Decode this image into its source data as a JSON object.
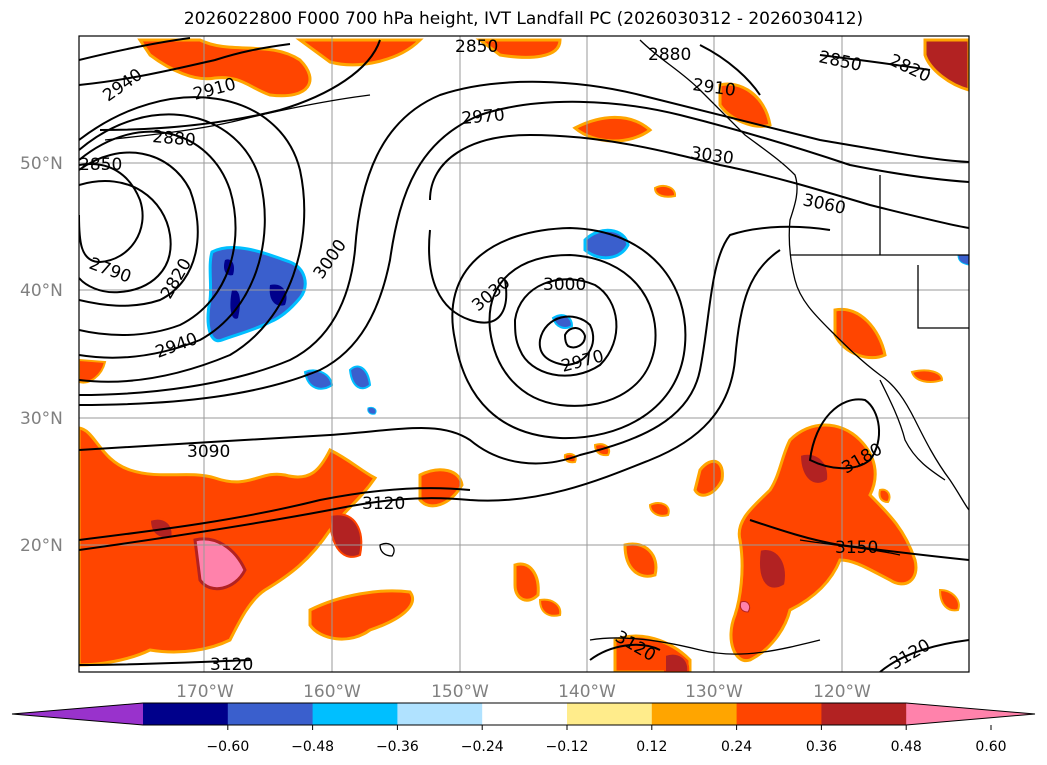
{
  "title": "2026022800 F000 700 hPa height, IVT Landfall PC (2026030312 - 2026030412)",
  "map": {
    "lat_labels": [
      "50°N",
      "40°N",
      "30°N",
      "20°N"
    ],
    "lon_labels": [
      "170°W",
      "160°W",
      "150°W",
      "140°W",
      "130°W",
      "120°W"
    ],
    "contour_labels": [
      {
        "text": "2940"
      },
      {
        "text": "2910"
      },
      {
        "text": "2850"
      },
      {
        "text": "2880"
      },
      {
        "text": "2850"
      },
      {
        "text": "2790"
      },
      {
        "text": "2820"
      },
      {
        "text": "2940"
      },
      {
        "text": "3000"
      },
      {
        "text": "2970"
      },
      {
        "text": "3030"
      },
      {
        "text": "3060"
      },
      {
        "text": "2850"
      },
      {
        "text": "2820"
      },
      {
        "text": "2910"
      },
      {
        "text": "2880"
      },
      {
        "text": "3030"
      },
      {
        "text": "3000"
      },
      {
        "text": "2970"
      },
      {
        "text": "3090"
      },
      {
        "text": "3120"
      },
      {
        "text": "3180"
      },
      {
        "text": "3150"
      },
      {
        "text": "3120"
      },
      {
        "text": "3120"
      },
      {
        "text": "3120"
      }
    ]
  },
  "colorbar": {
    "colors": [
      "#9932cc",
      "#00008b",
      "#3a5fcd",
      "#00bfff",
      "#b0e2ff",
      "#ffffff",
      "#ffec8b",
      "#ffa500",
      "#ff4500",
      "#b22222",
      "#ff82ab"
    ],
    "ticks": [
      "−0.60",
      "−0.48",
      "−0.36",
      "−0.24",
      "−0.12",
      "0.12",
      "0.24",
      "0.36",
      "0.48",
      "0.60"
    ]
  }
}
